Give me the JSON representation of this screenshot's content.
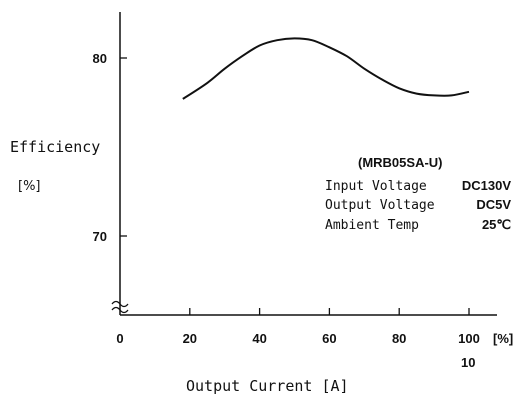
{
  "chart_data": {
    "type": "line",
    "ylabel_line1": "Efficiency",
    "ylabel_line2": "[%]",
    "xlabel": "Output Current [A]",
    "x_unit": "[%]",
    "x_sub_label": "10",
    "x_ticks": [
      0,
      20,
      40,
      60,
      80,
      100
    ],
    "x_tick_labels": [
      "0",
      "20",
      "40",
      "60",
      "80",
      "100"
    ],
    "y_ticks": [
      70,
      80
    ],
    "y_tick_labels": [
      "70",
      "80"
    ],
    "xlim": [
      0,
      100
    ],
    "ylim_display": [
      70,
      80
    ],
    "axis_break": true,
    "series": [
      {
        "x": [
          18,
          25,
          30,
          35,
          40,
          45,
          50,
          55,
          60,
          65,
          70,
          75,
          80,
          85,
          90,
          95,
          100
        ],
        "y": [
          77.7,
          78.6,
          79.4,
          80.1,
          80.7,
          81.0,
          81.1,
          81.0,
          80.6,
          80.1,
          79.4,
          78.8,
          78.3,
          78.0,
          77.9,
          77.9,
          78.1
        ]
      }
    ],
    "annotation": {
      "model": "(MRB05SA-U)",
      "rows": [
        {
          "label": "Input Voltage",
          "value": "DC130V"
        },
        {
          "label": "Output Voltage",
          "value": "DC5V"
        },
        {
          "label": "Ambient Temp",
          "value": "25℃"
        }
      ]
    },
    "grid": false,
    "legend": "none"
  }
}
